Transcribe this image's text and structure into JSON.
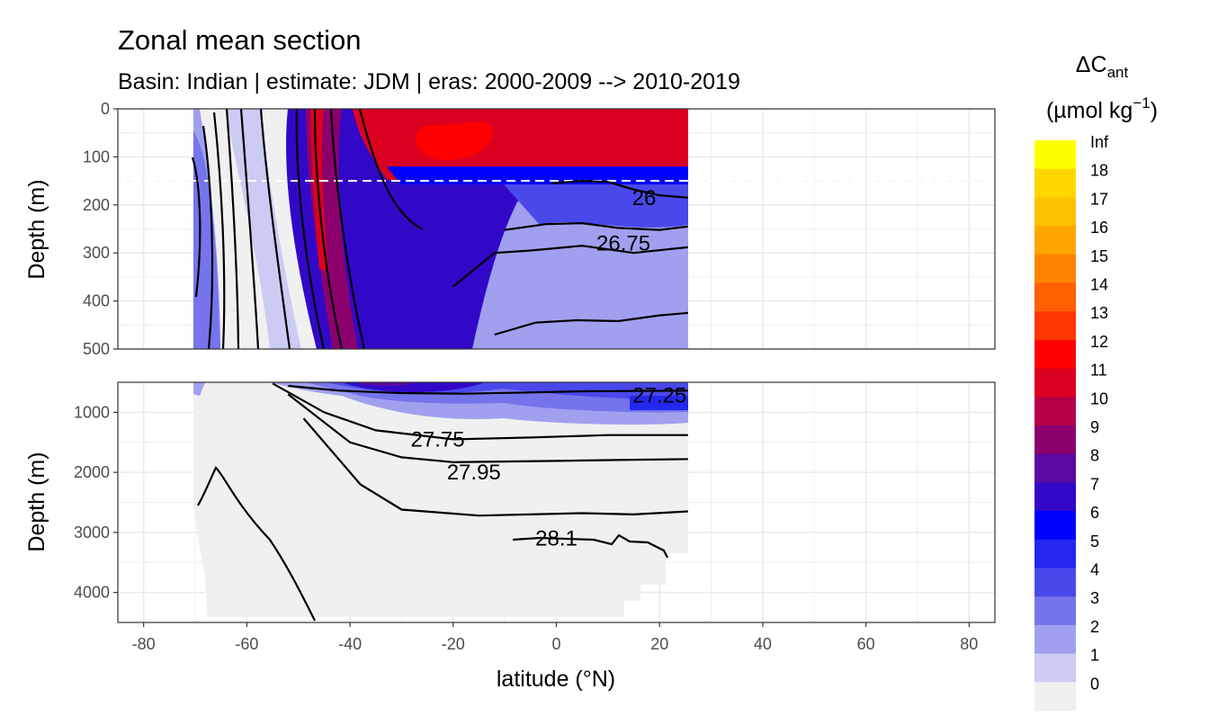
{
  "chart_data": {
    "type": "contour",
    "title": "Zonal mean section",
    "subtitle": "Basin: Indian | estimate: JDM  | eras: 2000-2009 --> 2010-2019",
    "xlabel": "latitude (°N)",
    "ylabel": "Depth (m)",
    "xlim": [
      -85,
      85
    ],
    "x_ticks": [
      -80,
      -60,
      -40,
      -20,
      0,
      20,
      40,
      60,
      80
    ],
    "data_lat_range": [
      -70,
      25.5
    ],
    "panels": [
      {
        "name": "upper",
        "ylim": [
          0,
          500
        ],
        "y_ticks": [
          0,
          100,
          200,
          300,
          400,
          500
        ],
        "reference_depth_dashed": 150
      },
      {
        "name": "lower",
        "ylim": [
          500,
          4500
        ],
        "y_ticks": [
          1000,
          2000,
          3000,
          4000
        ]
      }
    ],
    "legend": {
      "title_main": "ΔC",
      "title_sub": "ant",
      "unit_main": "(µmol kg",
      "unit_sup": "−1",
      "unit_close": ")",
      "breaks": [
        "Inf",
        "18",
        "17",
        "16",
        "15",
        "14",
        "13",
        "12",
        "11",
        "10",
        "9",
        "8",
        "7",
        "6",
        "5",
        "4",
        "3",
        "2",
        "1",
        "0"
      ],
      "colors": [
        "#ffff00",
        "#ffd700",
        "#ffc200",
        "#ffa500",
        "#ff8200",
        "#ff5f00",
        "#ff3600",
        "#ff0000",
        "#dc0020",
        "#b40048",
        "#8c006e",
        "#5a0aa0",
        "#3208c8",
        "#0000ff",
        "#2428ee",
        "#4a48ea",
        "#7674ec",
        "#a0a0ef",
        "#cbcbf4",
        "#f0f0f0"
      ]
    },
    "density_contours": [
      {
        "panel": "upper",
        "label": "26",
        "lat": 17,
        "depth": 185,
        "points": [
          [
            -1,
            155
          ],
          [
            5,
            150
          ],
          [
            10,
            152
          ],
          [
            15,
            168
          ],
          [
            20,
            180
          ],
          [
            25.5,
            185
          ]
        ]
      },
      {
        "panel": "upper",
        "label": "26.75",
        "lat": 13,
        "depth": 280,
        "points": [
          [
            -10,
            252
          ],
          [
            -2,
            240
          ],
          [
            5,
            238
          ],
          [
            12,
            248
          ],
          [
            20,
            252
          ],
          [
            25.5,
            245
          ]
        ]
      },
      {
        "panel": "upper",
        "label": "",
        "lat": 0,
        "depth": 0,
        "points": [
          [
            -20,
            370
          ],
          [
            -12,
            300
          ],
          [
            -5,
            295
          ],
          [
            5,
            285
          ],
          [
            15,
            300
          ],
          [
            25.5,
            288
          ]
        ]
      },
      {
        "panel": "upper",
        "label": "",
        "lat": 0,
        "depth": 0,
        "points": [
          [
            -12,
            470
          ],
          [
            -4,
            445
          ],
          [
            4,
            440
          ],
          [
            12,
            442
          ],
          [
            20,
            430
          ],
          [
            25.5,
            425
          ]
        ]
      },
      {
        "panel": "lower",
        "label": "27.25",
        "lat": 20,
        "depth": 720,
        "points": [
          [
            -52,
            560
          ],
          [
            -42,
            640
          ],
          [
            -30,
            680
          ],
          [
            -18,
            690
          ],
          [
            -5,
            670
          ],
          [
            5,
            650
          ],
          [
            25.5,
            640
          ]
        ]
      },
      {
        "panel": "lower",
        "label": "27.75",
        "lat": -23,
        "depth": 1450,
        "points": [
          [
            -55,
            520
          ],
          [
            -45,
            1000
          ],
          [
            -35,
            1300
          ],
          [
            -20,
            1450
          ],
          [
            -5,
            1420
          ],
          [
            10,
            1380
          ],
          [
            25.5,
            1380
          ]
        ]
      },
      {
        "panel": "lower",
        "label": "27.95",
        "lat": -16,
        "depth": 2000,
        "points": [
          [
            -52,
            700
          ],
          [
            -40,
            1500
          ],
          [
            -30,
            1750
          ],
          [
            -20,
            1830
          ],
          [
            0,
            1810
          ],
          [
            15,
            1790
          ],
          [
            25.5,
            1780
          ]
        ]
      },
      {
        "panel": "lower",
        "label": "28.1",
        "lat": 0,
        "depth": 3100,
        "points": [
          [
            -49,
            1100
          ],
          [
            -38,
            2200
          ],
          [
            -30,
            2620
          ],
          [
            -15,
            2720
          ],
          [
            5,
            2680
          ],
          [
            15,
            2700
          ],
          [
            25.5,
            2650
          ]
        ]
      }
    ]
  }
}
